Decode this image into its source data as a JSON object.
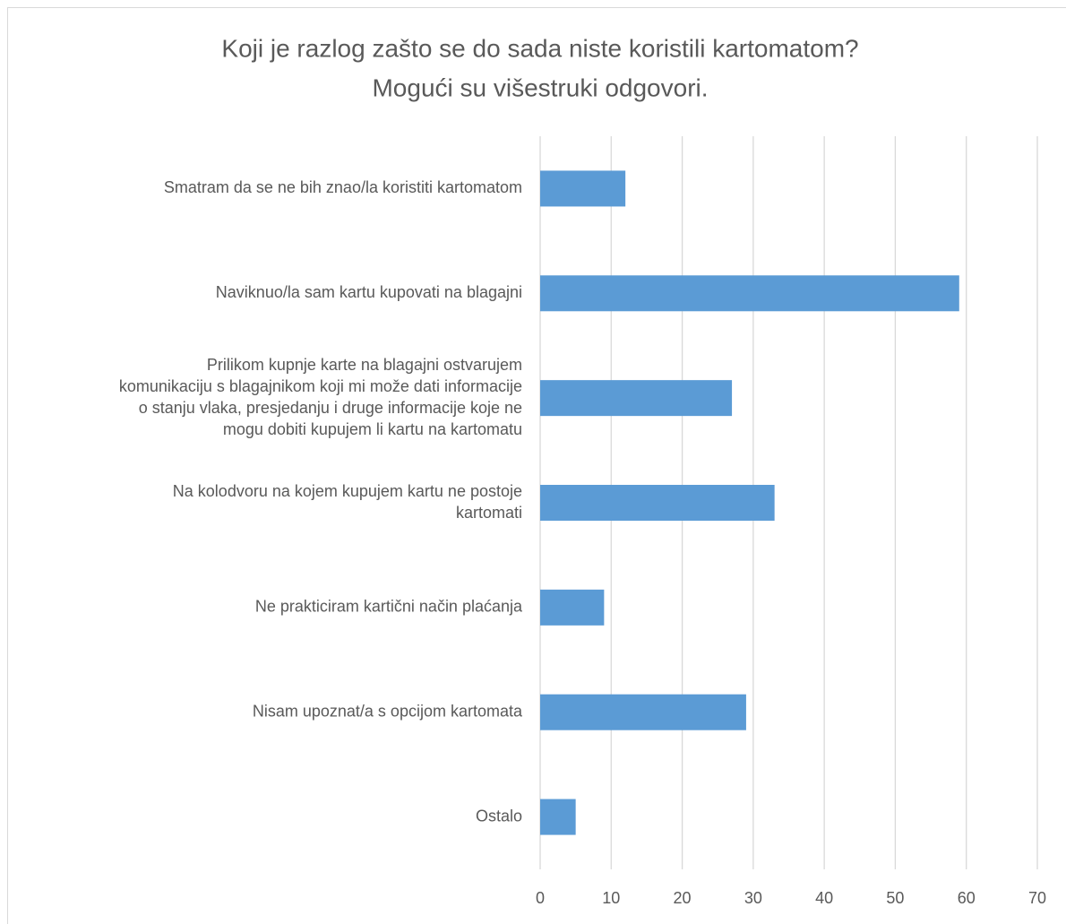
{
  "chart_data": {
    "type": "bar",
    "orientation": "horizontal",
    "title": [
      "Koji je razlog zašto se do sada niste koristili kartomatom?",
      "Mogući su višestruki odgovori."
    ],
    "categories": [
      [
        "Smatram da se ne bih znao/la koristiti kartomatom"
      ],
      [
        "Naviknuo/la sam kartu kupovati na blagajni"
      ],
      [
        "Prilikom kupnje karte na blagajni ostvarujem",
        "komunikaciju s blagajnikom koji mi može dati informacije",
        "o stanju vlaka, presjedanju i druge informacije koje ne",
        "mogu dobiti kupujem li kartu na kartomatu"
      ],
      [
        "Na kolodvoru na kojem kupujem kartu ne postoje",
        "kartomati"
      ],
      [
        "Ne prakticiram kartični način plaćanja"
      ],
      [
        "Nisam upoznat/a s opcijom kartomata"
      ],
      [
        "Ostalo"
      ]
    ],
    "values": [
      12,
      59,
      27,
      33,
      9,
      29,
      5
    ],
    "color": "#5b9bd5",
    "xlim": [
      0,
      70
    ],
    "xticks": [
      0,
      10,
      20,
      30,
      40,
      50,
      60,
      70
    ],
    "grid": true
  }
}
